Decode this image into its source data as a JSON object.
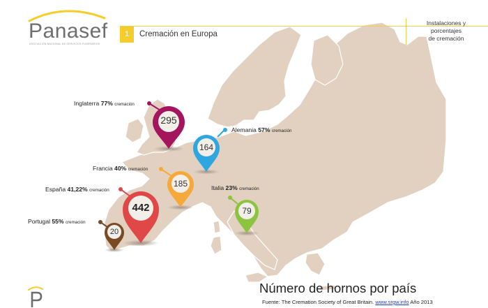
{
  "brand": {
    "name": "Panasef",
    "subtitle": "ASOCIACIÓN NACIONAL DE SERVICIOS FUNERARIOS",
    "accent": "#f5cd2b",
    "text_color": "#6d6e70"
  },
  "header": {
    "number": "1",
    "title": "Cremación en Europa",
    "right_line1": "Instalaciones y",
    "right_line2": "porcentajes",
    "right_line3": "de cremación"
  },
  "countries": [
    {
      "id": "inglaterra",
      "name": "Inglaterra",
      "percent": "77%",
      "word": "cremación",
      "ovens": "295",
      "color": "#a4155e"
    },
    {
      "id": "alemania",
      "name": "Alemania",
      "percent": "57%",
      "word": "cremación",
      "ovens": "164",
      "color": "#2fa6e0"
    },
    {
      "id": "francia",
      "name": "Francia",
      "percent": "40%",
      "word": "cremación",
      "ovens": "185",
      "color": "#f6a93b"
    },
    {
      "id": "espana",
      "name": "España",
      "percent": "41,22%",
      "word": "cremación",
      "ovens": "442",
      "color": "#e04848"
    },
    {
      "id": "italia",
      "name": "Italia",
      "percent": "23%",
      "word": "cremación",
      "ovens": "79",
      "color": "#8cc43f"
    },
    {
      "id": "portugal",
      "name": "Portugal",
      "percent": "55%",
      "word": "cremación",
      "ovens": "20",
      "color": "#7a4a24"
    }
  ],
  "footer": {
    "title": "Número de hornos por país",
    "source_prefix": "Fuente: The Cremation Society of Great Britain.",
    "source_link": "www.srgw.info",
    "source_year": "Año 2013"
  },
  "map_color": "#e2d1c0"
}
